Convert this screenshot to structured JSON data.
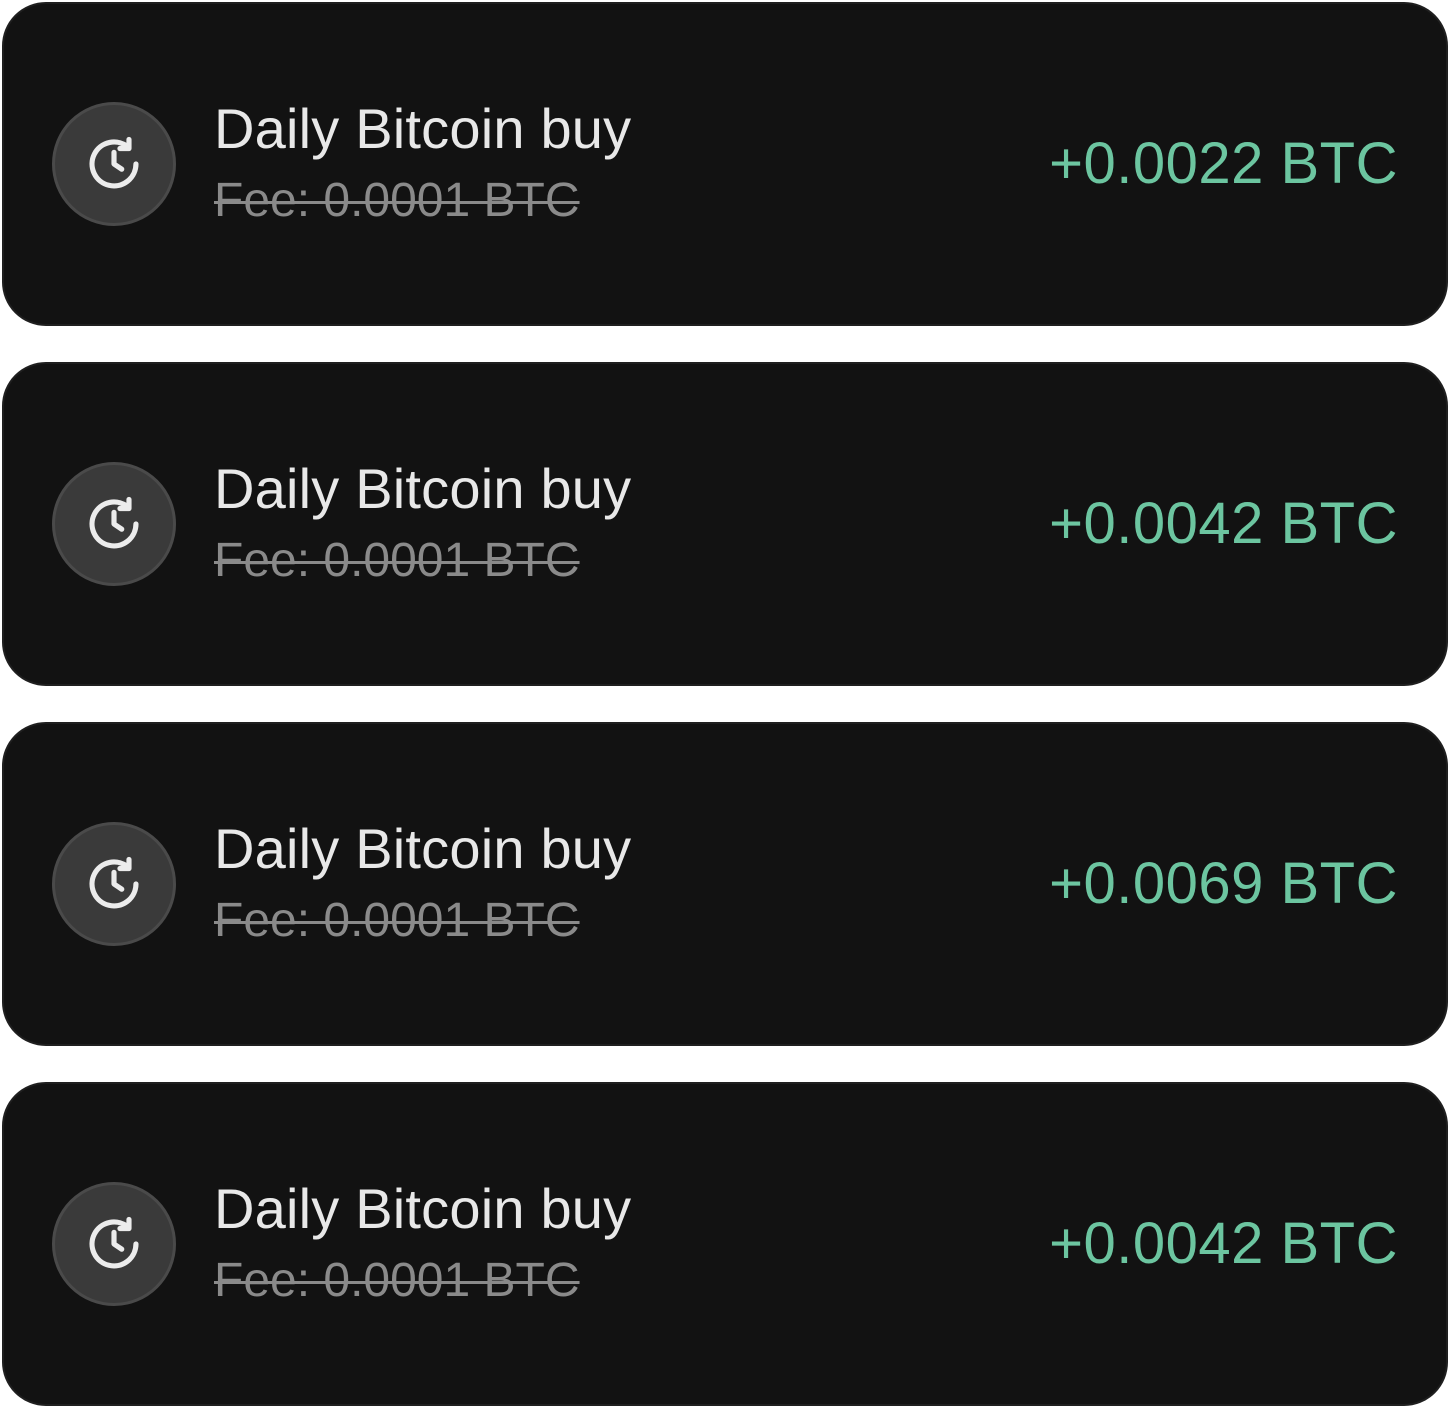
{
  "colors": {
    "card_background": "#121212",
    "title_text": "#e8e8e8",
    "fee_text": "#8a8a8a",
    "amount_text": "#6cc5a0",
    "icon_background": "#3a3a3a"
  },
  "transactions": [
    {
      "icon": "recurring-clock-icon",
      "title": "Daily Bitcoin buy",
      "fee": "Fee: 0.0001 BTC",
      "amount": "+0.0022 BTC"
    },
    {
      "icon": "recurring-clock-icon",
      "title": "Daily Bitcoin buy",
      "fee": "Fee: 0.0001 BTC",
      "amount": "+0.0042 BTC"
    },
    {
      "icon": "recurring-clock-icon",
      "title": "Daily Bitcoin buy",
      "fee": "Fee: 0.0001 BTC",
      "amount": "+0.0069 BTC"
    },
    {
      "icon": "recurring-clock-icon",
      "title": "Daily Bitcoin buy",
      "fee": "Fee: 0.0001 BTC",
      "amount": "+0.0042 BTC"
    }
  ]
}
